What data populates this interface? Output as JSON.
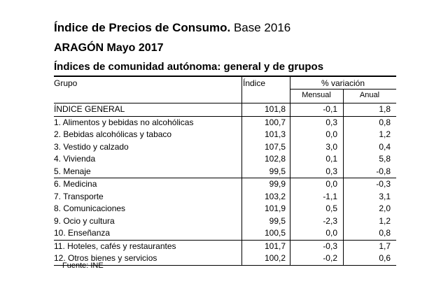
{
  "title": {
    "bold_part": "Índice de Precios de Consumo.",
    "normal_part": " Base 2016"
  },
  "subtitle": "ARAGÓN Mayo 2017",
  "section_title": "Índices de comunidad autónoma: general y de grupos",
  "table": {
    "headers": {
      "grupo": "Grupo",
      "indice": "Índice",
      "variacion": "% variación",
      "mensual": "Mensual",
      "anual": "Anual"
    },
    "rows": [
      {
        "name": "ÍNDICE GENERAL",
        "indice": "101,8",
        "mensual": "-0,1",
        "anual": "1,8"
      },
      {
        "name": "1. Alimentos y bebidas no alcohólicas",
        "indice": "100,7",
        "mensual": "0,3",
        "anual": "0,8"
      },
      {
        "name": "2. Bebidas alcohólicas y tabaco",
        "indice": "101,3",
        "mensual": "0,0",
        "anual": "1,2"
      },
      {
        "name": "3. Vestido y calzado",
        "indice": "107,5",
        "mensual": "3,0",
        "anual": "0,4"
      },
      {
        "name": "4. Vivienda",
        "indice": "102,8",
        "mensual": "0,1",
        "anual": "5,8"
      },
      {
        "name": "5. Menaje",
        "indice": "99,5",
        "mensual": "0,3",
        "anual": "-0,8"
      },
      {
        "name": "6. Medicina",
        "indice": "99,9",
        "mensual": "0,0",
        "anual": "-0,3"
      },
      {
        "name": "7. Transporte",
        "indice": "103,2",
        "mensual": "-1,1",
        "anual": "3,1"
      },
      {
        "name": "8. Comunicaciones",
        "indice": "101,9",
        "mensual": "0,5",
        "anual": "2,0"
      },
      {
        "name": "9. Ocio y cultura",
        "indice": "99,5",
        "mensual": "-2,3",
        "anual": "1,2"
      },
      {
        "name": "10. Enseñanza",
        "indice": "100,5",
        "mensual": "0,0",
        "anual": "0,8"
      },
      {
        "name": "11. Hoteles, cafés y restaurantes",
        "indice": "101,7",
        "mensual": "-0,3",
        "anual": "1,7"
      },
      {
        "name": "12. Otros bienes y servicios",
        "indice": "100,2",
        "mensual": "-0,2",
        "anual": "0,6"
      }
    ]
  },
  "source": "Fuente: INE"
}
